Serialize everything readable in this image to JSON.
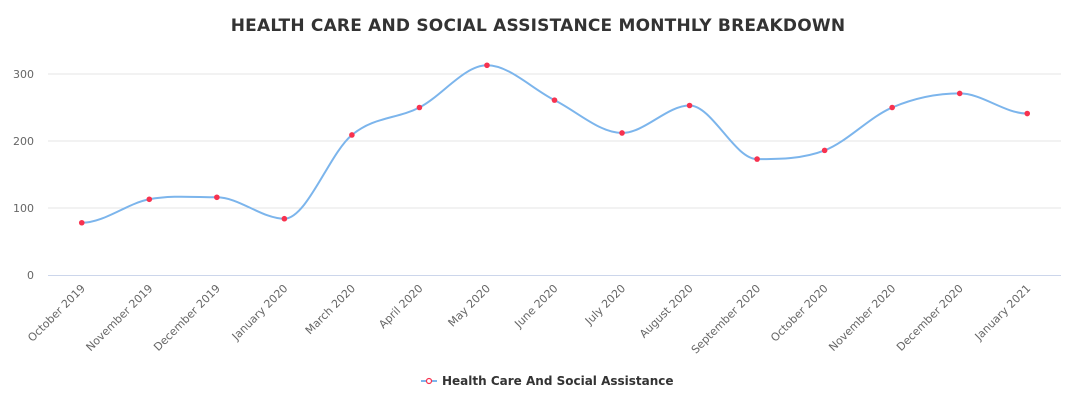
{
  "chart_data": {
    "type": "line",
    "title": "HEALTH CARE AND SOCIAL ASSISTANCE MONTHLY BREAKDOWN",
    "xlabel": "",
    "ylabel": "",
    "categories": [
      "October 2019",
      "November 2019",
      "December 2019",
      "January 2020",
      "March 2020",
      "April 2020",
      "May 2020",
      "June 2020",
      "July 2020",
      "August 2020",
      "September 2020",
      "October 2020",
      "November 2020",
      "December 2020",
      "January 2021"
    ],
    "series": [
      {
        "name": "Health Care And Social Assistance",
        "values": [
          78,
          113,
          116,
          84,
          209,
          250,
          313,
          261,
          212,
          253,
          173,
          186,
          250,
          271,
          241
        ],
        "line_color": "#7cb5ec",
        "marker_color": "#f7324f"
      }
    ],
    "ylim": [
      0,
      300
    ],
    "yticks": [
      0,
      100,
      200,
      300
    ],
    "grid": true,
    "smooth": true,
    "legend": "bottom-center"
  }
}
